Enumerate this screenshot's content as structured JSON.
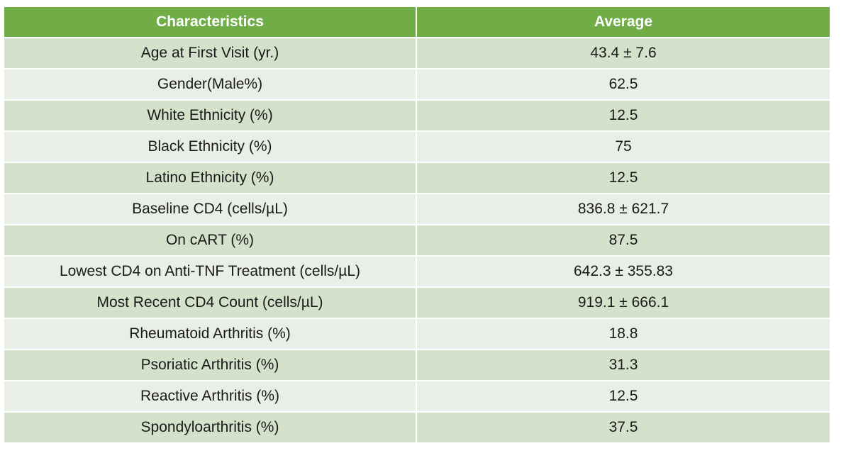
{
  "table": {
    "headers": [
      "Characteristics",
      "Average"
    ],
    "rows": [
      [
        "Age at First Visit (yr.)",
        "43.4 ± 7.6"
      ],
      [
        "Gender(Male%)",
        "62.5"
      ],
      [
        "White Ethnicity (%)",
        "12.5"
      ],
      [
        "Black Ethnicity (%)",
        "75"
      ],
      [
        "Latino Ethnicity (%)",
        "12.5"
      ],
      [
        "Baseline CD4 (cells/µL)",
        "836.8 ± 621.7"
      ],
      [
        "On cART (%)",
        "87.5"
      ],
      [
        "Lowest CD4 on Anti-TNF Treatment (cells/µL)",
        "642.3 ± 355.83"
      ],
      [
        "Most Recent CD4 Count (cells/µL)",
        "919.1 ± 666.1"
      ],
      [
        "Rheumatoid Arthritis (%)",
        "18.8"
      ],
      [
        "Psoriatic Arthritis (%)",
        "31.3"
      ],
      [
        "Reactive Arthritis (%)",
        "12.5"
      ],
      [
        "Spondyloarthritis (%)",
        "37.5"
      ]
    ]
  },
  "colors": {
    "header_bg": "#70ad47",
    "row_band_dark": "#d4e2cc",
    "row_band_light": "#e9efe6"
  }
}
